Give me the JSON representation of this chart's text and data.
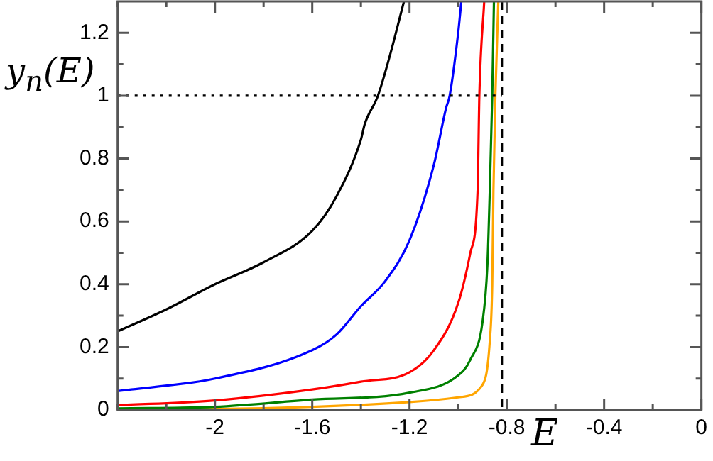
{
  "chart_data": {
    "type": "line",
    "xlabel": "E",
    "ylabel": "y$_{n}$(E)",
    "xlim": [
      -2.4,
      0
    ],
    "ylim": [
      0,
      1.3
    ],
    "xticks": [
      {
        "value": -2.4,
        "label": null
      },
      {
        "value": -2.2,
        "label": null
      },
      -2,
      {
        "value": -1.8,
        "label": null
      },
      -1.6,
      {
        "value": -1.4,
        "label": null
      },
      -1.2,
      {
        "value": -1,
        "label": null
      },
      -0.8,
      {
        "value": -0.6,
        "label": null
      },
      -0.4,
      {
        "value": -0.2,
        "label": null
      },
      0
    ],
    "yticks": [
      0,
      {
        "value": 0.1,
        "label": null
      },
      0.2,
      {
        "value": 0.3,
        "label": null
      },
      0.4,
      {
        "value": 0.5,
        "label": null
      },
      0.6,
      {
        "value": 0.7,
        "label": null
      },
      0.8,
      {
        "value": 0.9,
        "label": null
      },
      1,
      {
        "value": 1.1,
        "label": null
      },
      1.2
    ],
    "grid": false,
    "legend": false,
    "marker": "none",
    "line_style": "solid",
    "ref_lines": [
      {
        "axis": "x",
        "value": -0.82,
        "color": "#000000",
        "line_style": "dashed"
      }
    ],
    "series": [
      {
        "color": "#000000",
        "line_style": "dotted",
        "x": [
          -2.4,
          -0.82
        ],
        "values": [
          1,
          1
        ]
      },
      {
        "color": "#000000",
        "x": [
          -2.4,
          -2.2,
          -2.0,
          -1.8,
          -1.6,
          -1.5,
          -1.4,
          -1.384,
          -1.33,
          -1.28,
          -1.223
        ],
        "values": [
          0.25,
          0.32,
          0.4,
          0.47,
          0.57,
          0.68,
          0.86,
          0.91,
          1.0,
          1.13,
          1.3
        ]
      },
      {
        "color": "#0000ff",
        "x": [
          -2.4,
          -2.0,
          -1.6,
          -1.5,
          -1.4,
          -1.3,
          -1.2,
          -1.1,
          -1.05,
          -1.035,
          -1.0,
          -0.987
        ],
        "values": [
          0.06,
          0.1,
          0.19,
          0.24,
          0.33,
          0.41,
          0.54,
          0.78,
          0.96,
          1.0,
          1.2,
          1.3
        ]
      },
      {
        "color": "#ff0000",
        "x": [
          -2.4,
          -2.0,
          -1.6,
          -1.4,
          -1.2,
          -1.1,
          -1.0,
          -0.95,
          -0.92,
          -0.913,
          -0.893
        ],
        "values": [
          0.015,
          0.03,
          0.065,
          0.09,
          0.12,
          0.19,
          0.34,
          0.5,
          0.7,
          1.0,
          1.3
        ]
      },
      {
        "color": "#008000",
        "x": [
          -2.4,
          -2.0,
          -1.6,
          -1.2,
          -1.0,
          -0.95,
          -0.9,
          -0.88,
          -0.87,
          -0.86,
          -0.853
        ],
        "values": [
          0.005,
          0.01,
          0.033,
          0.055,
          0.11,
          0.16,
          0.28,
          0.46,
          0.7,
          1.0,
          1.3
        ]
      },
      {
        "color": "#ffa500",
        "x": [
          -2.4,
          -2.0,
          -1.6,
          -1.2,
          -1.0,
          -0.9,
          -0.87,
          -0.86,
          -0.855,
          -0.847,
          -0.835
        ],
        "values": [
          0.002,
          0.003,
          0.01,
          0.025,
          0.04,
          0.08,
          0.22,
          0.4,
          0.7,
          1.0,
          1.3
        ]
      }
    ]
  }
}
